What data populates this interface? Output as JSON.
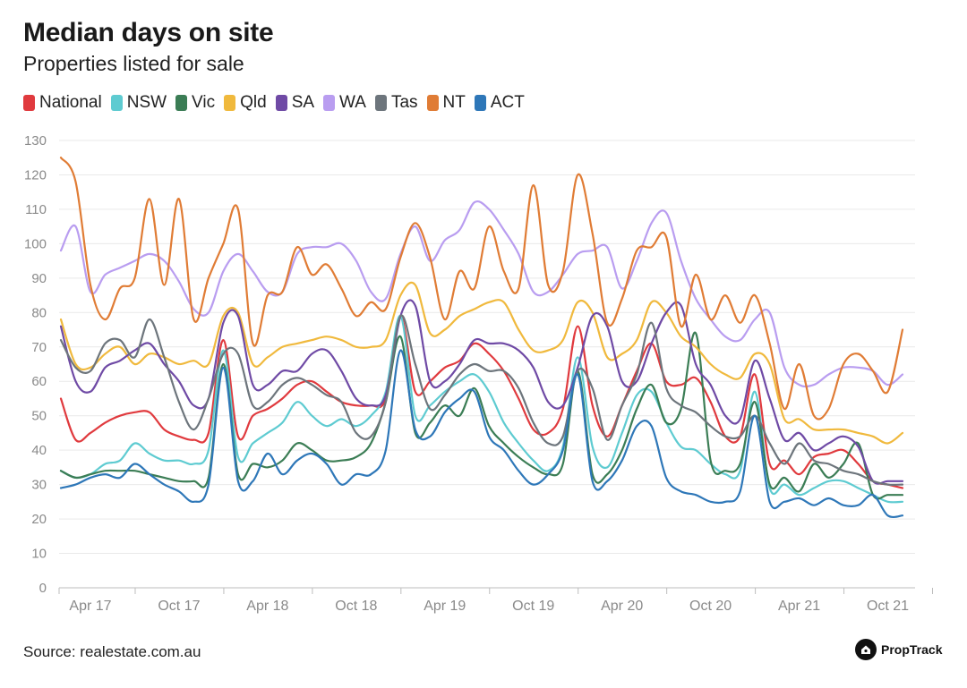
{
  "chart_data": {
    "type": "line",
    "title": "Median days on site",
    "subtitle": "Properties listed for sale",
    "source": "Source: realestate.com.au",
    "brand": "PropTrack",
    "ylim": [
      0,
      130
    ],
    "yticks": [
      0,
      10,
      20,
      30,
      40,
      50,
      60,
      70,
      80,
      90,
      100,
      110,
      120,
      130
    ],
    "grid": "horizontal",
    "legend_position": "top",
    "x_start": "Feb 2017",
    "x_end": "Nov 2021",
    "xticks": [
      {
        "label": "Apr 17",
        "date": "2017-04"
      },
      {
        "label": "Oct 17",
        "date": "2017-10"
      },
      {
        "label": "Apr 18",
        "date": "2018-04"
      },
      {
        "label": "Oct 18",
        "date": "2018-10"
      },
      {
        "label": "Apr 19",
        "date": "2019-04"
      },
      {
        "label": "Oct 19",
        "date": "2019-10"
      },
      {
        "label": "Apr 20",
        "date": "2020-04"
      },
      {
        "label": "Oct 20",
        "date": "2020-10"
      },
      {
        "label": "Apr 21",
        "date": "2021-04"
      },
      {
        "label": "Oct 21",
        "date": "2021-10"
      }
    ],
    "x": [
      "2017-02",
      "2017-03",
      "2017-04",
      "2017-05",
      "2017-06",
      "2017-07",
      "2017-08",
      "2017-09",
      "2017-10",
      "2017-11",
      "2017-12",
      "2018-01",
      "2018-02",
      "2018-03",
      "2018-04",
      "2018-05",
      "2018-06",
      "2018-07",
      "2018-08",
      "2018-09",
      "2018-10",
      "2018-11",
      "2018-12",
      "2019-01",
      "2019-02",
      "2019-03",
      "2019-04",
      "2019-05",
      "2019-06",
      "2019-07",
      "2019-08",
      "2019-09",
      "2019-10",
      "2019-11",
      "2019-12",
      "2020-01",
      "2020-02",
      "2020-03",
      "2020-04",
      "2020-05",
      "2020-06",
      "2020-07",
      "2020-08",
      "2020-09",
      "2020-10",
      "2020-11",
      "2020-12",
      "2021-01",
      "2021-02",
      "2021-03",
      "2021-04",
      "2021-05",
      "2021-06",
      "2021-07",
      "2021-08",
      "2021-09",
      "2021-10",
      "2021-11"
    ],
    "series": [
      {
        "name": "National",
        "color": "#e03a3e",
        "values": [
          55,
          43,
          45,
          48,
          50,
          51,
          51,
          46,
          44,
          43,
          45,
          72,
          44,
          50,
          52,
          55,
          59,
          60,
          57,
          54,
          53,
          53,
          55,
          79,
          57,
          60,
          64,
          66,
          71,
          68,
          63,
          55,
          46,
          45,
          52,
          76,
          53,
          44,
          53,
          63,
          71,
          60,
          59,
          61,
          54,
          44,
          44,
          62,
          36,
          37,
          33,
          38,
          39,
          40,
          36,
          31,
          30,
          29
        ]
      },
      {
        "name": "NSW",
        "color": "#5ecbd1",
        "values": [
          34,
          32,
          33,
          36,
          37,
          42,
          39,
          37,
          37,
          36,
          40,
          69,
          38,
          42,
          45,
          48,
          54,
          50,
          47,
          49,
          47,
          50,
          57,
          79,
          50,
          53,
          57,
          60,
          62,
          57,
          48,
          42,
          37,
          34,
          41,
          67,
          41,
          35,
          45,
          56,
          57,
          48,
          41,
          40,
          36,
          33,
          34,
          57,
          29,
          30,
          27,
          29,
          31,
          31,
          29,
          27,
          25,
          25
        ]
      },
      {
        "name": "Vic",
        "color": "#3b7d55",
        "values": [
          34,
          32,
          33,
          34,
          34,
          34,
          33,
          32,
          31,
          31,
          32,
          65,
          33,
          36,
          35,
          37,
          42,
          40,
          37,
          37,
          38,
          42,
          54,
          73,
          45,
          48,
          53,
          50,
          58,
          47,
          42,
          38,
          35,
          33,
          36,
          63,
          33,
          33,
          40,
          52,
          59,
          48,
          52,
          74,
          37,
          34,
          36,
          54,
          30,
          32,
          28,
          36,
          32,
          36,
          42,
          27,
          27,
          27
        ]
      },
      {
        "name": "Qld",
        "color": "#f0b93d",
        "values": [
          78,
          65,
          64,
          68,
          70,
          65,
          68,
          67,
          65,
          66,
          65,
          79,
          80,
          65,
          67,
          70,
          71,
          72,
          73,
          72,
          70,
          70,
          72,
          85,
          88,
          74,
          75,
          79,
          81,
          83,
          83,
          75,
          69,
          69,
          72,
          83,
          80,
          67,
          68,
          72,
          83,
          80,
          73,
          70,
          65,
          62,
          61,
          68,
          65,
          49,
          49,
          46,
          46,
          46,
          45,
          44,
          42,
          45
        ]
      },
      {
        "name": "SA",
        "color": "#6f4aa5",
        "values": [
          76,
          60,
          57,
          64,
          66,
          69,
          71,
          65,
          60,
          53,
          55,
          77,
          79,
          59,
          59,
          63,
          63,
          68,
          69,
          63,
          55,
          53,
          56,
          79,
          82,
          60,
          60,
          65,
          72,
          71,
          71,
          69,
          64,
          54,
          53,
          64,
          79,
          76,
          60,
          60,
          71,
          80,
          82,
          65,
          59,
          50,
          49,
          66,
          55,
          43,
          45,
          40,
          42,
          44,
          41,
          31,
          31,
          31
        ]
      },
      {
        "name": "WA",
        "color": "#b99df0",
        "values": [
          98,
          105,
          86,
          91,
          93,
          95,
          97,
          95,
          89,
          81,
          80,
          92,
          97,
          92,
          86,
          86,
          97,
          99,
          99,
          100,
          95,
          86,
          84,
          97,
          105,
          95,
          101,
          104,
          112,
          110,
          104,
          97,
          86,
          86,
          91,
          97,
          98,
          99,
          87,
          95,
          106,
          109,
          95,
          84,
          78,
          73,
          72,
          78,
          80,
          64,
          59,
          59,
          62,
          64,
          64,
          63,
          59,
          62
        ]
      },
      {
        "name": "Tas",
        "color": "#6d757c",
        "values": [
          72,
          64,
          63,
          71,
          72,
          67,
          78,
          67,
          54,
          46,
          55,
          68,
          68,
          53,
          54,
          59,
          61,
          59,
          56,
          54,
          45,
          44,
          54,
          79,
          65,
          52,
          56,
          62,
          65,
          63,
          63,
          58,
          48,
          42,
          44,
          63,
          58,
          43,
          53,
          62,
          77,
          58,
          53,
          51,
          47,
          44,
          44,
          50,
          42,
          36,
          42,
          37,
          36,
          34,
          33,
          31,
          30,
          30
        ]
      },
      {
        "name": "NT",
        "color": "#e07c35",
        "values": [
          125,
          118,
          88,
          78,
          87,
          90,
          113,
          88,
          113,
          78,
          90,
          100,
          110,
          71,
          85,
          86,
          99,
          91,
          94,
          87,
          79,
          83,
          81,
          96,
          106,
          96,
          78,
          92,
          87,
          105,
          92,
          87,
          117,
          88,
          92,
          120,
          103,
          77,
          84,
          98,
          99,
          102,
          76,
          91,
          78,
          85,
          77,
          85,
          71,
          52,
          65,
          50,
          52,
          65,
          68,
          63,
          57,
          75
        ]
      },
      {
        "name": "ACT",
        "color": "#2e77b8",
        "values": [
          29,
          30,
          32,
          33,
          32,
          36,
          33,
          30,
          28,
          25,
          30,
          64,
          31,
          31,
          39,
          33,
          37,
          39,
          36,
          30,
          33,
          33,
          40,
          69,
          46,
          44,
          51,
          55,
          57,
          44,
          40,
          34,
          30,
          33,
          40,
          62,
          31,
          31,
          37,
          47,
          47,
          32,
          28,
          27,
          25,
          25,
          28,
          50,
          25,
          25,
          26,
          24,
          26,
          24,
          24,
          27,
          21,
          21
        ]
      }
    ]
  }
}
